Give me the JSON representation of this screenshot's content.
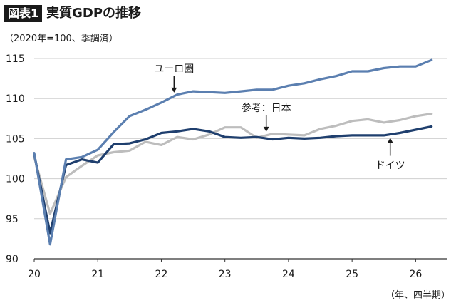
{
  "figure": {
    "label": "図表1",
    "title": "実質GDPの推移",
    "unit_note": "（2020年=100、季調済）",
    "x_note": "（年、四半期）"
  },
  "chart_data": {
    "type": "line",
    "title": "実質GDPの推移",
    "xlabel": "（年、四半期）",
    "ylabel": "（2020年=100、季調済）",
    "ylim": [
      90,
      115
    ],
    "xlim": [
      20,
      26.5
    ],
    "yticks": [
      90,
      95,
      100,
      105,
      110,
      115
    ],
    "xticks": [
      20,
      21,
      22,
      23,
      24,
      25,
      26
    ],
    "xtick_labels": [
      "20",
      "21",
      "22",
      "23",
      "24",
      "25",
      "26"
    ],
    "ytick_labels": [
      "90",
      "95",
      "100",
      "105",
      "110",
      "115"
    ],
    "grid": "horizontal",
    "x": [
      20.0,
      20.25,
      20.5,
      20.75,
      21.0,
      21.25,
      21.5,
      21.75,
      22.0,
      22.25,
      22.5,
      22.75,
      23.0,
      23.25,
      23.5,
      23.75,
      24.0,
      24.25,
      24.5,
      24.75,
      25.0,
      25.25,
      25.5,
      25.75,
      26.0,
      26.25
    ],
    "series": [
      {
        "name": "ユーロ圏",
        "color": "#5b7fb0",
        "values": [
          103.2,
          91.8,
          102.4,
          102.7,
          103.6,
          105.8,
          107.8,
          108.6,
          109.5,
          110.5,
          110.9,
          110.8,
          110.7,
          110.9,
          111.1,
          111.1,
          111.6,
          111.9,
          112.4,
          112.8,
          113.4,
          113.4,
          113.8,
          114.0,
          114.0,
          114.8
        ]
      },
      {
        "name": "ドイツ",
        "color": "#1f3f6e",
        "values": [
          103.1,
          93.2,
          101.7,
          102.4,
          102.0,
          104.3,
          104.4,
          104.9,
          105.7,
          105.9,
          106.2,
          105.9,
          105.2,
          105.1,
          105.2,
          104.9,
          105.1,
          105.0,
          105.1,
          105.3,
          105.4,
          105.4,
          105.4,
          105.7,
          106.1,
          106.5
        ]
      },
      {
        "name": "日本",
        "color": "#bdbdbd",
        "values": [
          102.7,
          95.6,
          100.2,
          101.6,
          102.9,
          103.3,
          103.5,
          104.6,
          104.2,
          105.2,
          104.9,
          105.5,
          106.4,
          106.4,
          105.1,
          105.6,
          105.5,
          105.4,
          106.2,
          106.6,
          107.2,
          107.4,
          107.0,
          107.3,
          107.8,
          108.1
        ]
      }
    ],
    "annotations": [
      {
        "text": "ユーロ圏",
        "series": "ユーロ圏",
        "arrow": true,
        "arrow_x": 22.2
      },
      {
        "text": "参考：日本",
        "series": "日本",
        "arrow": true,
        "arrow_x": 23.65
      },
      {
        "text": "ドイツ",
        "series": "ドイツ",
        "arrow": true,
        "arrow_x": 25.6
      }
    ]
  }
}
